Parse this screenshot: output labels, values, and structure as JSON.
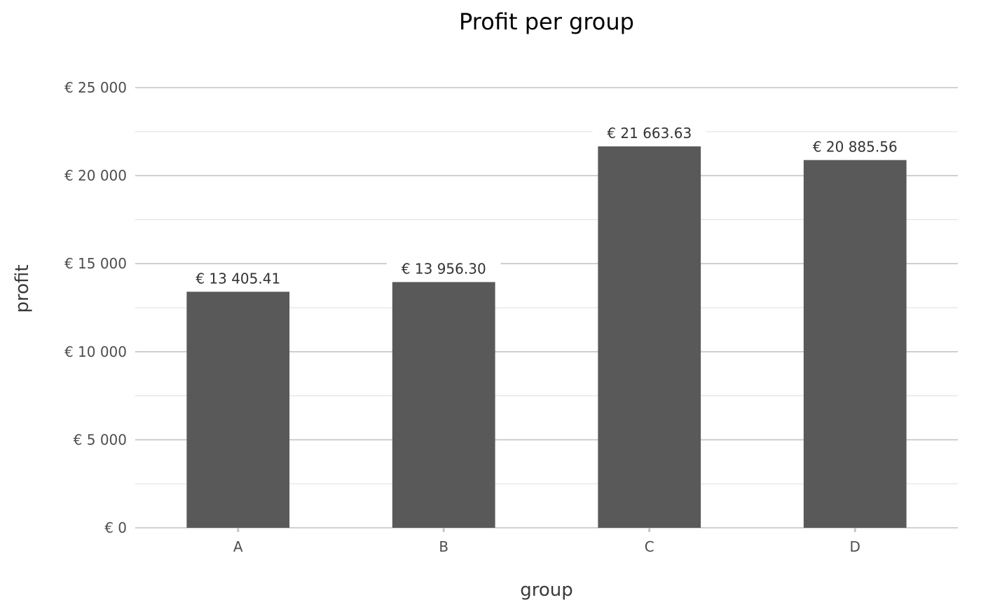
{
  "chart_data": {
    "type": "bar",
    "title": "Profit per group",
    "xlabel": "group",
    "ylabel": "profit",
    "categories": [
      "A",
      "B",
      "C",
      "D"
    ],
    "values": [
      13405.41,
      13956.3,
      21663.63,
      20885.56
    ],
    "data_labels": [
      "€ 13 405.41",
      "€ 13 956.30",
      "€ 21 663.63",
      "€ 20 885.56"
    ],
    "ylim": [
      0,
      25000
    ],
    "y_ticks": [
      0,
      5000,
      10000,
      15000,
      20000,
      25000
    ],
    "y_tick_labels": [
      "€ 0",
      "€ 5 000",
      "€ 10 000",
      "€ 15 000",
      "€ 20 000",
      "€ 25 000"
    ],
    "y_minor_ticks": [
      2500,
      7500,
      12500,
      17500,
      22500
    ],
    "grid": true,
    "legend": "none",
    "bar_color": "#595959"
  }
}
